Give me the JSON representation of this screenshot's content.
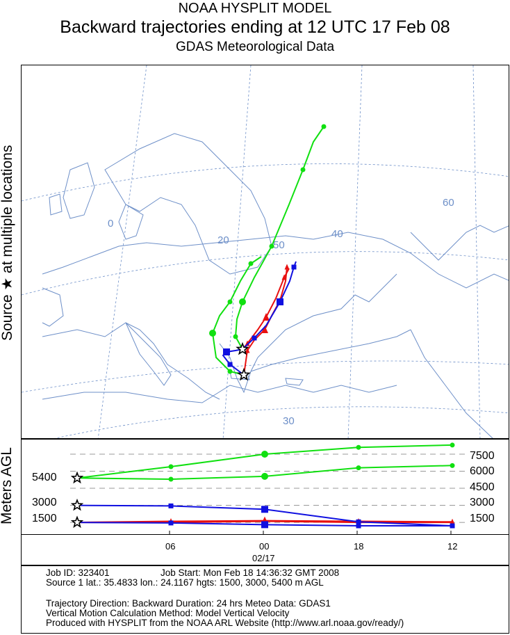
{
  "header": {
    "line1": "NOAA HYSPLIT MODEL",
    "line2": "Backward trajectories ending at 12 UTC 17 Feb 08",
    "line3": "GDAS Meteorological Data"
  },
  "side_labels": {
    "source": "Source ★ at multiple locations",
    "meters": "Meters AGL"
  },
  "map": {
    "grid_labels": [
      "0",
      "20",
      "40",
      "60",
      "50",
      "30"
    ]
  },
  "chart_data": {
    "type": "line",
    "x_ticks": [
      "06",
      "00",
      "18",
      "12"
    ],
    "x_sublabel": "02/17",
    "y_left_labels": [
      "5400",
      "3000",
      "1500"
    ],
    "y_right_labels": [
      "7500",
      "6000",
      "4500",
      "3000",
      "1500"
    ],
    "colors": {
      "red": "#e81010",
      "blue": "#1010e0",
      "green": "#10e010"
    },
    "height_series": [
      {
        "color": "red",
        "marker": "triangle",
        "hours_from_start": [
          0,
          6,
          12,
          18,
          24
        ],
        "values": [
          1500,
          1500,
          1600,
          1500,
          1500
        ]
      },
      {
        "color": "red",
        "marker": "triangle",
        "hours_from_start": [
          0,
          6,
          12,
          18,
          24
        ],
        "values": [
          1500,
          1600,
          1650,
          1600,
          1550
        ]
      },
      {
        "color": "blue",
        "marker": "square",
        "hours_from_start": [
          0,
          6,
          12,
          18,
          24
        ],
        "values": [
          3000,
          2950,
          2650,
          1550,
          1200
        ]
      },
      {
        "color": "blue",
        "marker": "square",
        "hours_from_start": [
          0,
          6,
          12,
          18,
          24
        ],
        "values": [
          1500,
          1450,
          1300,
          1200,
          1200
        ]
      },
      {
        "color": "green",
        "marker": "circle",
        "hours_from_start": [
          0,
          6,
          12,
          18,
          24
        ],
        "values": [
          5400,
          5300,
          5550,
          6300,
          6500
        ]
      },
      {
        "color": "green",
        "marker": "circle",
        "hours_from_start": [
          0,
          6,
          12,
          18,
          24
        ],
        "values": [
          5400,
          6400,
          7500,
          8100,
          8300
        ]
      }
    ]
  },
  "info": {
    "job_id": "Job ID: 323401",
    "job_start": "Job Start: Mon Feb 18 14:36:32 GMT 2008",
    "source": "Source 1 lat.: 35.4833  lon.: 24.1167  hgts: 1500, 3000, 5400 m AGL",
    "direction": "Trajectory Direction: Backward    Duration: 24 hrs    Meteo Data: GDAS1",
    "vertical": "Vertical Motion Calculation Method: Model Vertical Velocity",
    "produced": "Produced with HYSPLIT from the NOAA ARL Website (http://www.arl.noaa.gov/ready/)"
  }
}
